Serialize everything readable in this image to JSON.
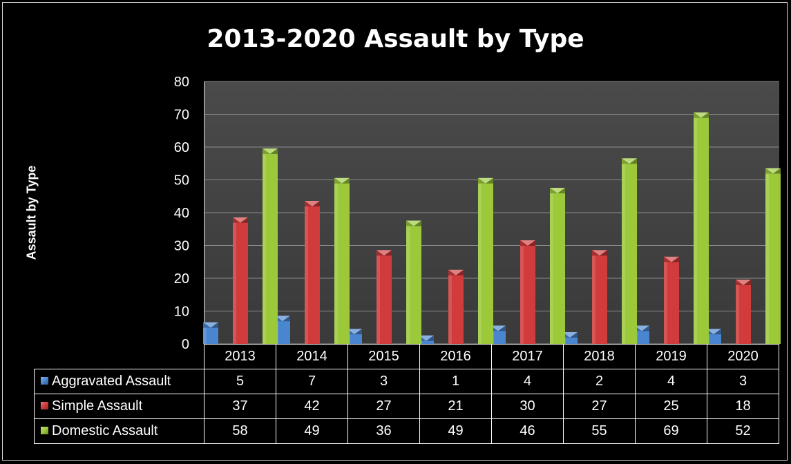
{
  "chart_data": {
    "type": "bar",
    "title": "2013-2020 Assault by Type",
    "ylabel": "Assault by Type",
    "xlabel": "",
    "categories": [
      "2013",
      "2014",
      "2015",
      "2016",
      "2017",
      "2018",
      "2019",
      "2020"
    ],
    "ylim": [
      0,
      80
    ],
    "yticks": [
      "0",
      "10",
      "20",
      "30",
      "40",
      "50",
      "60",
      "70",
      "80"
    ],
    "grid": true,
    "legend": "data-table",
    "series": [
      {
        "name": "Aggravated Assault",
        "color": "#4a86d0",
        "values": [
          5,
          7,
          3,
          1,
          4,
          2,
          4,
          3
        ],
        "labels": [
          "5",
          "7",
          "3",
          "1",
          "4",
          "2",
          "4",
          "3"
        ]
      },
      {
        "name": "Simple Assault",
        "color": "#d13b3b",
        "values": [
          37,
          42,
          27,
          21,
          30,
          27,
          25,
          18
        ],
        "labels": [
          "37",
          "42",
          "27",
          "21",
          "30",
          "27",
          "25",
          "18"
        ]
      },
      {
        "name": "Domestic Assault",
        "color": "#9bc93a",
        "values": [
          58,
          49,
          36,
          49,
          46,
          55,
          69,
          52
        ],
        "labels": [
          "58",
          "49",
          "36",
          "49",
          "46",
          "55",
          "69",
          "52"
        ]
      }
    ]
  }
}
